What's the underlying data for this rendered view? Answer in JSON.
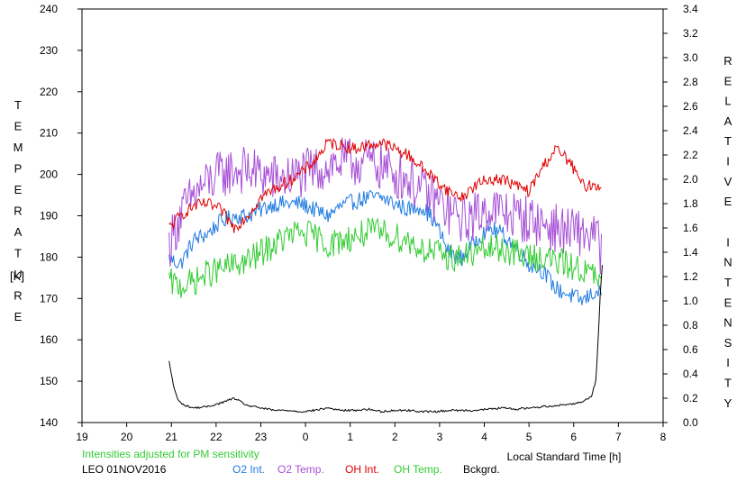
{
  "chart_data": {
    "type": "line",
    "left_axis_label": "TEMPERATURE",
    "left_axis_unit": "[K]",
    "right_axis_label": "RELATIVE INTENSITY",
    "xlabel": "Local Standard Time [h]",
    "note": "Intensities adjusted for PM sensitivity",
    "station": "LEO 01NOV2016",
    "x_ticks": [
      "19",
      "20",
      "21",
      "22",
      "23",
      "0",
      "1",
      "2",
      "3",
      "4",
      "5",
      "6",
      "7",
      "8"
    ],
    "xlim": [
      19,
      32
    ],
    "y_left_ticks": [
      "140",
      "150",
      "160",
      "170",
      "180",
      "190",
      "200",
      "210",
      "220",
      "230",
      "240"
    ],
    "ylim_left": [
      140,
      240
    ],
    "y_right_ticks": [
      "0.0",
      "0.2",
      "0.4",
      "0.6",
      "0.8",
      "1.0",
      "1.2",
      "1.4",
      "1.6",
      "1.8",
      "2.0",
      "2.2",
      "2.4",
      "2.6",
      "2.8",
      "3.0",
      "3.2",
      "3.4"
    ],
    "ylim_right": [
      0,
      3.4
    ],
    "grid": false,
    "colors": {
      "o2_int": "#1f7be0",
      "o2_temp": "#a64fd6",
      "oh_int": "#e00000",
      "oh_temp": "#33cc33",
      "bckgrd": "#000000",
      "note": "#33cc33"
    },
    "series": [
      {
        "name": "O2 Int.",
        "axis": "right",
        "color": "#1f7be0",
        "x": [
          20.95,
          21.2,
          21.5,
          21.8,
          22.1,
          22.4,
          22.7,
          23.0,
          23.3,
          23.6,
          23.9,
          24.2,
          24.5,
          24.8,
          25.1,
          25.4,
          25.7,
          26.0,
          26.3,
          26.6,
          26.9,
          27.2,
          27.5,
          27.8,
          28.1,
          28.4,
          28.7,
          29.0,
          29.3,
          29.6,
          29.9,
          30.2,
          30.5,
          30.62
        ],
        "y": [
          1.35,
          1.3,
          1.5,
          1.55,
          1.65,
          1.7,
          1.7,
          1.75,
          1.8,
          1.8,
          1.8,
          1.75,
          1.7,
          1.78,
          1.82,
          1.85,
          1.85,
          1.8,
          1.75,
          1.78,
          1.65,
          1.4,
          1.35,
          1.5,
          1.6,
          1.55,
          1.45,
          1.3,
          1.25,
          1.1,
          1.05,
          1.0,
          1.08,
          1.05
        ]
      },
      {
        "name": "O2 Temp.",
        "axis": "left",
        "color": "#a64fd6",
        "x": [
          20.95,
          21.2,
          21.5,
          21.8,
          22.1,
          22.4,
          22.7,
          23.0,
          23.3,
          23.6,
          23.9,
          24.2,
          24.5,
          24.8,
          25.1,
          25.4,
          25.7,
          26.0,
          26.3,
          26.6,
          26.9,
          27.2,
          27.5,
          27.8,
          28.1,
          28.4,
          28.7,
          29.0,
          29.3,
          29.6,
          29.9,
          30.2,
          30.5,
          30.62
        ],
        "y": [
          183,
          190,
          195,
          198,
          200,
          201,
          201,
          200,
          199,
          199,
          200,
          201,
          202,
          203,
          203,
          203,
          202,
          200,
          199,
          196,
          194,
          191,
          189,
          190,
          192,
          191,
          190,
          189,
          188,
          187,
          186,
          186,
          185,
          181
        ]
      },
      {
        "name": "OH Int.",
        "axis": "right",
        "color": "#e00000",
        "x": [
          20.95,
          21.2,
          21.5,
          21.8,
          22.1,
          22.4,
          22.7,
          23.0,
          23.3,
          23.6,
          23.9,
          24.2,
          24.5,
          24.8,
          25.1,
          25.4,
          25.7,
          26.0,
          26.3,
          26.6,
          26.9,
          27.2,
          27.5,
          27.8,
          28.1,
          28.4,
          28.7,
          29.0,
          29.3,
          29.6,
          29.9,
          30.2,
          30.5,
          30.62
        ],
        "y": [
          1.6,
          1.7,
          1.78,
          1.8,
          1.75,
          1.6,
          1.7,
          1.85,
          1.92,
          1.98,
          2.05,
          2.15,
          2.3,
          2.28,
          2.25,
          2.28,
          2.3,
          2.25,
          2.2,
          2.1,
          2.0,
          1.9,
          1.85,
          1.95,
          2.0,
          2.0,
          1.95,
          1.9,
          2.1,
          2.25,
          2.15,
          1.95,
          1.95,
          1.95
        ]
      },
      {
        "name": "OH Temp.",
        "axis": "left",
        "color": "#33cc33",
        "x": [
          20.95,
          21.2,
          21.5,
          21.8,
          22.1,
          22.4,
          22.7,
          23.0,
          23.3,
          23.6,
          23.9,
          24.2,
          24.5,
          24.8,
          25.1,
          25.4,
          25.7,
          26.0,
          26.3,
          26.6,
          26.9,
          27.2,
          27.5,
          27.8,
          28.1,
          28.4,
          28.7,
          29.0,
          29.3,
          29.6,
          29.9,
          30.2,
          30.5,
          30.62
        ],
        "y": [
          174,
          173,
          174,
          176,
          177,
          178,
          179,
          181,
          183,
          185,
          186,
          185,
          183,
          184,
          185,
          186,
          186,
          185,
          184,
          182,
          181,
          180,
          180,
          181,
          182,
          182,
          181,
          180,
          180,
          179,
          178,
          177,
          175,
          174
        ]
      },
      {
        "name": "Bckgrd.",
        "axis": "right",
        "color": "#000000",
        "x": [
          20.95,
          21.05,
          21.15,
          21.3,
          21.5,
          21.8,
          22.1,
          22.4,
          22.7,
          23.0,
          23.3,
          23.6,
          23.9,
          24.2,
          24.5,
          24.8,
          25.1,
          25.4,
          25.7,
          26.0,
          26.3,
          26.6,
          26.9,
          27.2,
          27.5,
          27.8,
          28.1,
          28.4,
          28.7,
          29.0,
          29.3,
          29.6,
          29.9,
          30.2,
          30.4,
          30.5,
          30.55,
          30.6,
          30.64
        ],
        "y": [
          0.5,
          0.3,
          0.18,
          0.14,
          0.12,
          0.13,
          0.16,
          0.2,
          0.14,
          0.12,
          0.1,
          0.1,
          0.09,
          0.1,
          0.12,
          0.1,
          0.1,
          0.11,
          0.09,
          0.1,
          0.1,
          0.09,
          0.09,
          0.1,
          0.1,
          0.1,
          0.11,
          0.12,
          0.11,
          0.12,
          0.13,
          0.14,
          0.15,
          0.17,
          0.22,
          0.35,
          0.7,
          1.1,
          1.3
        ]
      }
    ]
  },
  "legend": {
    "station": "LEO 01NOV2016",
    "items": [
      "O2 Int.",
      "O2 Temp.",
      "OH Int.",
      "OH Temp.",
      "Bckgrd."
    ]
  }
}
